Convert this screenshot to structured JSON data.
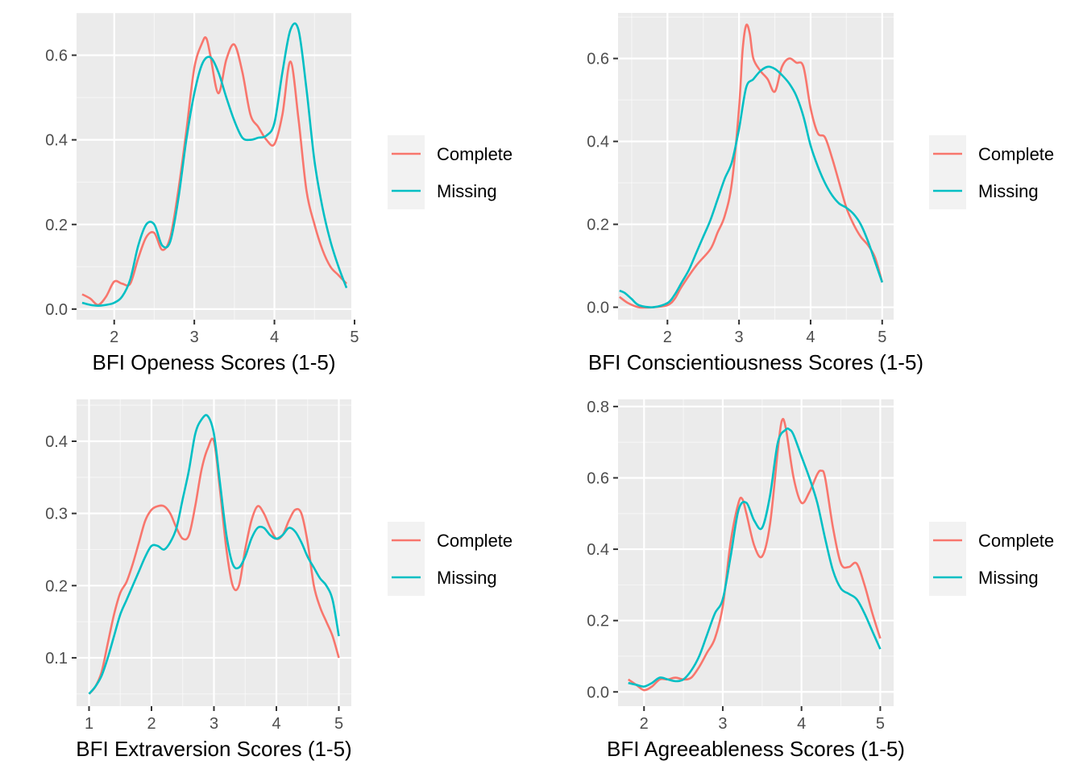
{
  "colors": {
    "complete": "#F8766D",
    "missing": "#00BFC4",
    "panel_bg": "#EBEBEB",
    "grid_major": "#FFFFFF",
    "legend_key_bg": "#F2F2F2",
    "tick_text": "#4D4D4D"
  },
  "legend": {
    "entries": [
      "Complete",
      "Missing"
    ],
    "placement": "right"
  },
  "chart_data": [
    {
      "type": "line",
      "xlabel": "BFI Openess Scores (1-5)",
      "ylabel": "",
      "xlim": [
        1.53,
        4.96
      ],
      "ylim": [
        -0.025,
        0.7
      ],
      "xticks": [
        2,
        3,
        4,
        5
      ],
      "yticks": [
        0.0,
        0.2,
        0.4,
        0.6
      ],
      "ytick_labels": [
        "0.0",
        "0.2",
        "0.4",
        "0.6"
      ],
      "series": [
        {
          "name": "Complete",
          "x": [
            1.6,
            1.7,
            1.8,
            1.9,
            2.0,
            2.1,
            2.2,
            2.3,
            2.4,
            2.5,
            2.6,
            2.7,
            2.8,
            2.9,
            3.0,
            3.1,
            3.15,
            3.2,
            3.3,
            3.4,
            3.5,
            3.6,
            3.7,
            3.8,
            3.9,
            4.0,
            4.1,
            4.2,
            4.3,
            4.4,
            4.5,
            4.6,
            4.7,
            4.8,
            4.9
          ],
          "y": [
            0.035,
            0.025,
            0.01,
            0.03,
            0.065,
            0.06,
            0.06,
            0.12,
            0.17,
            0.18,
            0.14,
            0.17,
            0.28,
            0.42,
            0.57,
            0.63,
            0.64,
            0.6,
            0.51,
            0.59,
            0.625,
            0.56,
            0.46,
            0.43,
            0.4,
            0.39,
            0.46,
            0.585,
            0.45,
            0.28,
            0.2,
            0.14,
            0.1,
            0.08,
            0.06
          ]
        },
        {
          "name": "Missing",
          "x": [
            1.6,
            1.7,
            1.8,
            1.9,
            2.0,
            2.1,
            2.2,
            2.3,
            2.4,
            2.5,
            2.6,
            2.7,
            2.8,
            2.9,
            3.0,
            3.1,
            3.2,
            3.3,
            3.4,
            3.5,
            3.6,
            3.7,
            3.8,
            3.9,
            4.0,
            4.1,
            4.2,
            4.3,
            4.4,
            4.5,
            4.6,
            4.7,
            4.8,
            4.9
          ],
          "y": [
            0.015,
            0.01,
            0.008,
            0.01,
            0.015,
            0.03,
            0.07,
            0.15,
            0.2,
            0.2,
            0.15,
            0.16,
            0.26,
            0.4,
            0.51,
            0.58,
            0.595,
            0.56,
            0.5,
            0.445,
            0.405,
            0.4,
            0.405,
            0.41,
            0.44,
            0.56,
            0.66,
            0.66,
            0.52,
            0.35,
            0.24,
            0.16,
            0.1,
            0.05
          ]
        }
      ]
    },
    {
      "type": "line",
      "xlabel": "BFI Conscientiousness Scores (1-5)",
      "ylabel": "",
      "xlim": [
        1.31,
        5.16
      ],
      "ylim": [
        -0.03,
        0.71
      ],
      "xticks": [
        2,
        3,
        4,
        5
      ],
      "yticks": [
        0.0,
        0.2,
        0.4,
        0.6
      ],
      "ytick_labels": [
        "0.0",
        "0.2",
        "0.4",
        "0.6"
      ],
      "series": [
        {
          "name": "Complete",
          "x": [
            1.33,
            1.45,
            1.6,
            1.8,
            2.0,
            2.1,
            2.2,
            2.4,
            2.6,
            2.7,
            2.8,
            2.9,
            3.0,
            3.05,
            3.1,
            3.15,
            3.2,
            3.3,
            3.4,
            3.5,
            3.6,
            3.7,
            3.8,
            3.9,
            4.0,
            4.1,
            4.2,
            4.3,
            4.4,
            4.5,
            4.6,
            4.7,
            4.8,
            4.9,
            5.0
          ],
          "y": [
            0.025,
            0.01,
            0.0,
            0.0,
            0.005,
            0.02,
            0.05,
            0.1,
            0.14,
            0.18,
            0.22,
            0.3,
            0.48,
            0.62,
            0.68,
            0.66,
            0.6,
            0.57,
            0.55,
            0.52,
            0.58,
            0.6,
            0.59,
            0.58,
            0.48,
            0.42,
            0.41,
            0.36,
            0.3,
            0.24,
            0.2,
            0.17,
            0.15,
            0.12,
            0.06
          ]
        },
        {
          "name": "Missing",
          "x": [
            1.33,
            1.4,
            1.5,
            1.6,
            1.8,
            2.0,
            2.1,
            2.2,
            2.3,
            2.4,
            2.5,
            2.6,
            2.7,
            2.8,
            2.9,
            3.0,
            3.1,
            3.2,
            3.3,
            3.4,
            3.5,
            3.6,
            3.7,
            3.8,
            3.9,
            4.0,
            4.1,
            4.2,
            4.3,
            4.4,
            4.5,
            4.6,
            4.7,
            4.8,
            4.9,
            5.0
          ],
          "y": [
            0.04,
            0.035,
            0.02,
            0.005,
            0.0,
            0.01,
            0.03,
            0.06,
            0.09,
            0.13,
            0.17,
            0.21,
            0.26,
            0.31,
            0.35,
            0.43,
            0.53,
            0.55,
            0.57,
            0.58,
            0.575,
            0.56,
            0.54,
            0.51,
            0.46,
            0.39,
            0.34,
            0.3,
            0.27,
            0.25,
            0.24,
            0.225,
            0.2,
            0.16,
            0.11,
            0.06
          ]
        }
      ]
    },
    {
      "type": "line",
      "xlabel": "BFI Extraversion Scores (1-5)",
      "ylabel": "",
      "xlim": [
        0.8,
        5.2
      ],
      "ylim": [
        0.033,
        0.458
      ],
      "xticks": [
        1,
        2,
        3,
        4,
        5
      ],
      "yticks": [
        0.1,
        0.2,
        0.3,
        0.4
      ],
      "ytick_labels": [
        "0.1",
        "0.2",
        "0.3",
        "0.4"
      ],
      "series": [
        {
          "name": "Complete",
          "x": [
            1.0,
            1.1,
            1.2,
            1.3,
            1.4,
            1.5,
            1.6,
            1.7,
            1.8,
            1.9,
            2.0,
            2.1,
            2.2,
            2.3,
            2.4,
            2.5,
            2.6,
            2.7,
            2.8,
            2.9,
            3.0,
            3.1,
            3.2,
            3.3,
            3.4,
            3.5,
            3.6,
            3.7,
            3.8,
            3.9,
            4.0,
            4.1,
            4.2,
            4.3,
            4.4,
            4.5,
            4.6,
            4.7,
            4.8,
            4.9,
            5.0
          ],
          "y": [
            0.05,
            0.06,
            0.08,
            0.12,
            0.16,
            0.19,
            0.205,
            0.23,
            0.26,
            0.29,
            0.305,
            0.31,
            0.31,
            0.3,
            0.28,
            0.265,
            0.27,
            0.31,
            0.36,
            0.39,
            0.4,
            0.33,
            0.25,
            0.2,
            0.2,
            0.25,
            0.29,
            0.31,
            0.3,
            0.28,
            0.265,
            0.27,
            0.29,
            0.305,
            0.3,
            0.26,
            0.2,
            0.17,
            0.15,
            0.13,
            0.1
          ]
        },
        {
          "name": "Missing",
          "x": [
            1.0,
            1.1,
            1.2,
            1.3,
            1.4,
            1.5,
            1.6,
            1.7,
            1.8,
            1.9,
            2.0,
            2.1,
            2.2,
            2.3,
            2.4,
            2.5,
            2.6,
            2.7,
            2.8,
            2.9,
            3.0,
            3.1,
            3.2,
            3.3,
            3.4,
            3.5,
            3.6,
            3.7,
            3.8,
            3.9,
            4.0,
            4.1,
            4.2,
            4.3,
            4.4,
            4.5,
            4.6,
            4.7,
            4.8,
            4.9,
            5.0
          ],
          "y": [
            0.05,
            0.06,
            0.075,
            0.1,
            0.13,
            0.16,
            0.18,
            0.2,
            0.22,
            0.24,
            0.255,
            0.255,
            0.25,
            0.26,
            0.28,
            0.32,
            0.36,
            0.41,
            0.43,
            0.435,
            0.41,
            0.34,
            0.27,
            0.23,
            0.225,
            0.24,
            0.265,
            0.28,
            0.28,
            0.27,
            0.265,
            0.27,
            0.28,
            0.275,
            0.26,
            0.24,
            0.225,
            0.21,
            0.2,
            0.18,
            0.13
          ]
        }
      ]
    },
    {
      "type": "line",
      "xlabel": "BFI Agreeableness Scores (1-5)",
      "ylabel": "",
      "xlim": [
        1.67,
        5.17
      ],
      "ylim": [
        -0.04,
        0.82
      ],
      "xticks": [
        2,
        3,
        4,
        5
      ],
      "yticks": [
        0.0,
        0.2,
        0.4,
        0.6,
        0.8
      ],
      "ytick_labels": [
        "0.0",
        "0.2",
        "0.4",
        "0.6",
        "0.8"
      ],
      "series": [
        {
          "name": "Complete",
          "x": [
            1.8,
            1.9,
            2.0,
            2.1,
            2.2,
            2.3,
            2.4,
            2.5,
            2.6,
            2.7,
            2.8,
            2.9,
            3.0,
            3.1,
            3.2,
            3.25,
            3.3,
            3.4,
            3.5,
            3.6,
            3.7,
            3.75,
            3.8,
            3.9,
            4.0,
            4.1,
            4.2,
            4.25,
            4.3,
            4.4,
            4.5,
            4.6,
            4.7,
            4.8,
            4.9,
            5.0
          ],
          "y": [
            0.035,
            0.02,
            0.005,
            0.015,
            0.035,
            0.035,
            0.04,
            0.035,
            0.04,
            0.07,
            0.11,
            0.15,
            0.24,
            0.42,
            0.53,
            0.54,
            0.5,
            0.41,
            0.38,
            0.47,
            0.68,
            0.76,
            0.74,
            0.6,
            0.53,
            0.56,
            0.61,
            0.62,
            0.6,
            0.46,
            0.36,
            0.35,
            0.36,
            0.3,
            0.22,
            0.15
          ]
        },
        {
          "name": "Missing",
          "x": [
            1.8,
            1.9,
            2.0,
            2.1,
            2.2,
            2.3,
            2.4,
            2.5,
            2.6,
            2.7,
            2.8,
            2.9,
            3.0,
            3.1,
            3.2,
            3.3,
            3.4,
            3.5,
            3.6,
            3.7,
            3.8,
            3.85,
            3.9,
            4.0,
            4.1,
            4.2,
            4.3,
            4.4,
            4.5,
            4.6,
            4.7,
            4.8,
            4.9,
            5.0
          ],
          "y": [
            0.025,
            0.02,
            0.015,
            0.025,
            0.04,
            0.035,
            0.03,
            0.035,
            0.06,
            0.1,
            0.16,
            0.22,
            0.26,
            0.38,
            0.51,
            0.53,
            0.48,
            0.46,
            0.55,
            0.7,
            0.735,
            0.735,
            0.72,
            0.66,
            0.6,
            0.53,
            0.43,
            0.34,
            0.29,
            0.275,
            0.26,
            0.22,
            0.17,
            0.12
          ]
        }
      ]
    }
  ]
}
